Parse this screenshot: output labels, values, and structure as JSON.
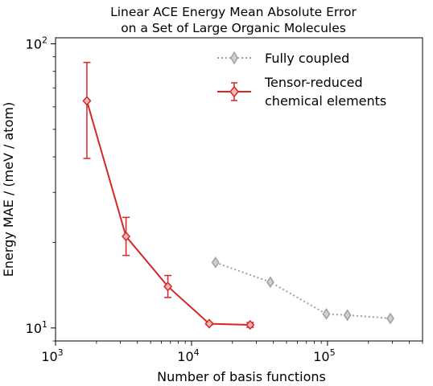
{
  "chart_data": {
    "type": "line",
    "title_lines": [
      "Linear ACE Energy Mean Absolute Error",
      "on a Set of Large Organic Molecules"
    ],
    "xlabel": "Number of basis functions",
    "ylabel": "Energy MAE / (meV / atom)",
    "xscale": "log",
    "yscale": "log",
    "xlim": [
      1000,
      500000
    ],
    "ylim": [
      9,
      105
    ],
    "x_major_ticks": [
      {
        "value": 1000,
        "base": "10",
        "exp": "3"
      },
      {
        "value": 10000,
        "base": "10",
        "exp": "4"
      },
      {
        "value": 100000,
        "base": "10",
        "exp": "5"
      }
    ],
    "y_major_ticks": [
      {
        "value": 10,
        "base": "10",
        "exp": "1"
      },
      {
        "value": 100,
        "base": "10",
        "exp": "2"
      }
    ],
    "legend_position": "top-right",
    "series": [
      {
        "name": "Fully coupled",
        "color": "#a0a0a0",
        "marker": "diamond",
        "linestyle": "dotted",
        "points": [
          {
            "x": 15000,
            "y": 17.0
          },
          {
            "x": 38000,
            "y": 14.5
          },
          {
            "x": 98000,
            "y": 11.2
          },
          {
            "x": 140000,
            "y": 11.1
          },
          {
            "x": 290000,
            "y": 10.8
          }
        ]
      },
      {
        "name": "Tensor-reduced chemical elements",
        "name_lines": [
          "Tensor-reduced",
          "chemical elements"
        ],
        "color": "#d62728",
        "marker": "diamond",
        "linestyle": "solid",
        "points": [
          {
            "x": 1700,
            "y": 63.0,
            "err_low": 39.5,
            "err_high": 86.0
          },
          {
            "x": 3300,
            "y": 21.0,
            "err_low": 18.0,
            "err_high": 24.5
          },
          {
            "x": 6700,
            "y": 14.0,
            "err_low": 12.8,
            "err_high": 15.3
          },
          {
            "x": 13500,
            "y": 10.35,
            "err_low": 10.25,
            "err_high": 10.45
          },
          {
            "x": 27000,
            "y": 10.25,
            "err_low": 10.05,
            "err_high": 10.45
          }
        ]
      }
    ]
  }
}
